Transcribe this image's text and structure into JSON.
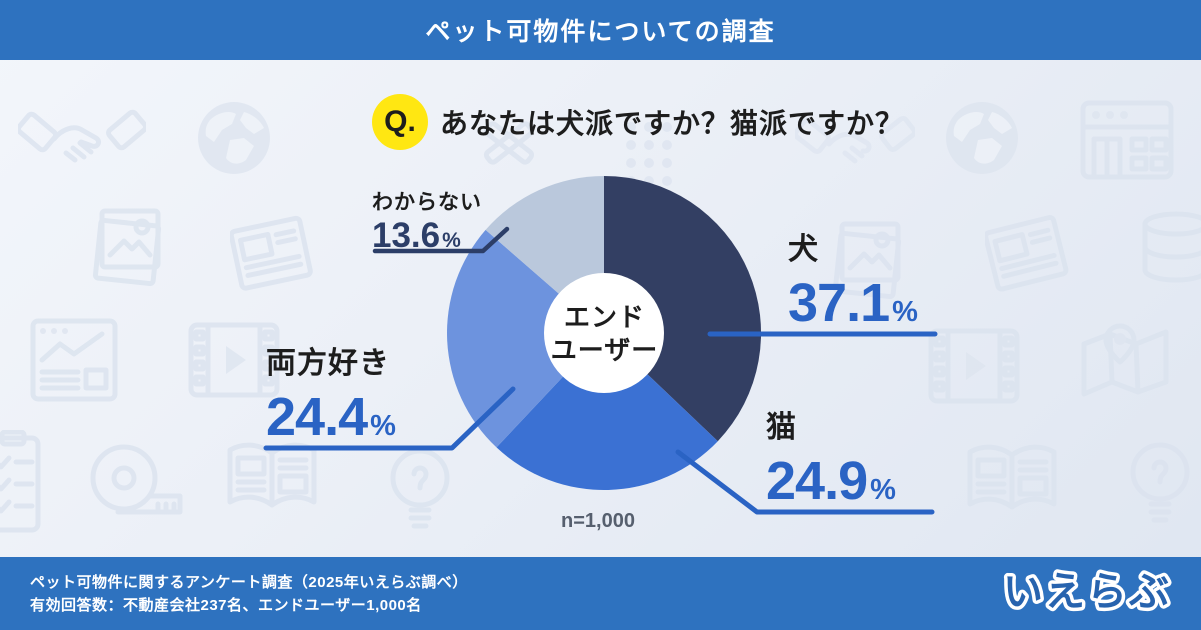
{
  "header": {
    "title": "ペット可物件についての調査"
  },
  "question": {
    "badge": "Q.",
    "text": "あなたは犬派ですか？猫派ですか？"
  },
  "chart_data": {
    "type": "pie",
    "title": "あなたは犬派ですか？猫派ですか？",
    "donut_center_label": "エンドユーザー",
    "sample_size": "n=1,000",
    "categories": [
      "犬",
      "猫",
      "両方好き",
      "わからない"
    ],
    "values": [
      37.1,
      24.9,
      24.4,
      13.6
    ],
    "colors": [
      "#333f63",
      "#3b71d3",
      "#6d93de",
      "#bac8dc"
    ],
    "start_angle_deg": 0,
    "direction": "clockwise",
    "legend_position": "callout-labels"
  },
  "labels": {
    "dog": {
      "name": "犬",
      "value": "37.1",
      "unit": "%"
    },
    "cat": {
      "name": "猫",
      "value": "24.9",
      "unit": "%"
    },
    "both": {
      "name": "両方好き",
      "value": "24.4",
      "unit": "%"
    },
    "unknown": {
      "name": "わからない",
      "value": "13.6",
      "unit": "%"
    }
  },
  "center": {
    "line1": "エンド",
    "line2": "ユーザー"
  },
  "sample": {
    "text": "n=1,000"
  },
  "footer": {
    "line1": "ペット可物件に関するアンケート調査（2025年いえらぶ調べ）",
    "line2": "有効回答数：不動産会社237名、エンドユーザー1,000名",
    "logo": "いえらぶ"
  },
  "colors": {
    "bar_blue": "#2e72bf",
    "accent_blue": "#2a63c4",
    "navy_text": "#2c3e68",
    "badge_yellow": "#ffe712"
  }
}
